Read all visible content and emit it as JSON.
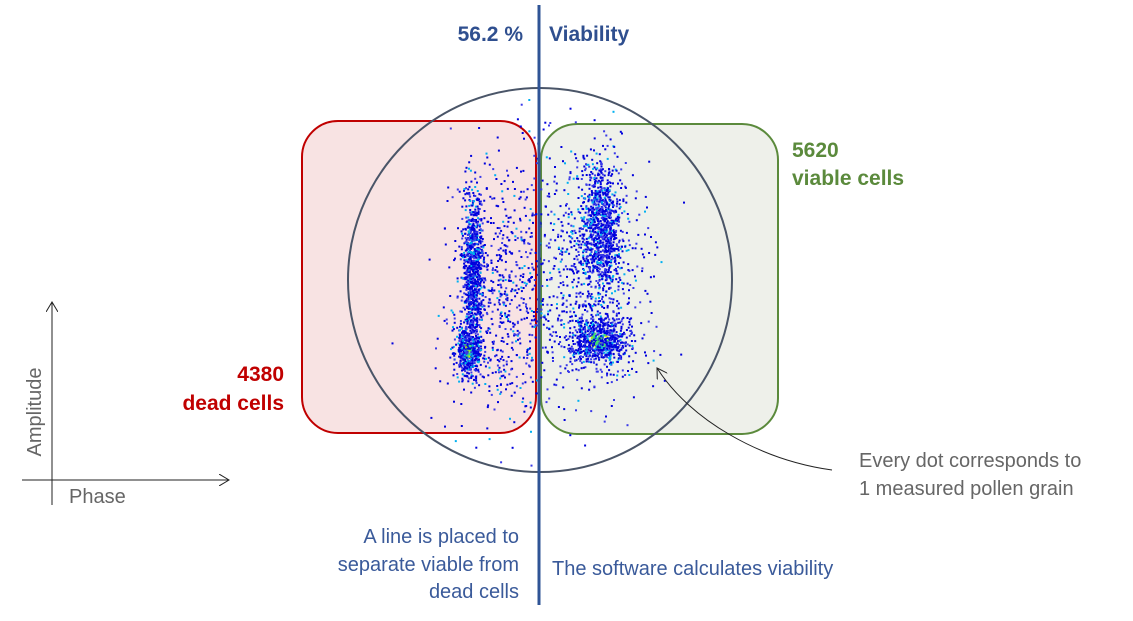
{
  "header": {
    "percent": "56.2 %",
    "title": "Viability"
  },
  "viable": {
    "count": "5620",
    "label": "viable cells",
    "color": "#5b8a3c"
  },
  "dead": {
    "count": "4380",
    "label": "dead cells",
    "color": "#c00000"
  },
  "note": {
    "line1": "Every dot corresponds to",
    "line2": "1 measured pollen grain"
  },
  "line_caption": {
    "line1": "A line is placed to",
    "line2": "separate viable from",
    "line3": "dead cells"
  },
  "software_caption": "The software calculates viability",
  "axes": {
    "y": "Amplitude",
    "x": "Phase"
  },
  "colors": {
    "accent": "#2f5496",
    "circle": "#4a5568",
    "dead_fill": "#f8e3e3",
    "viable_fill": "#eef0ea"
  }
}
